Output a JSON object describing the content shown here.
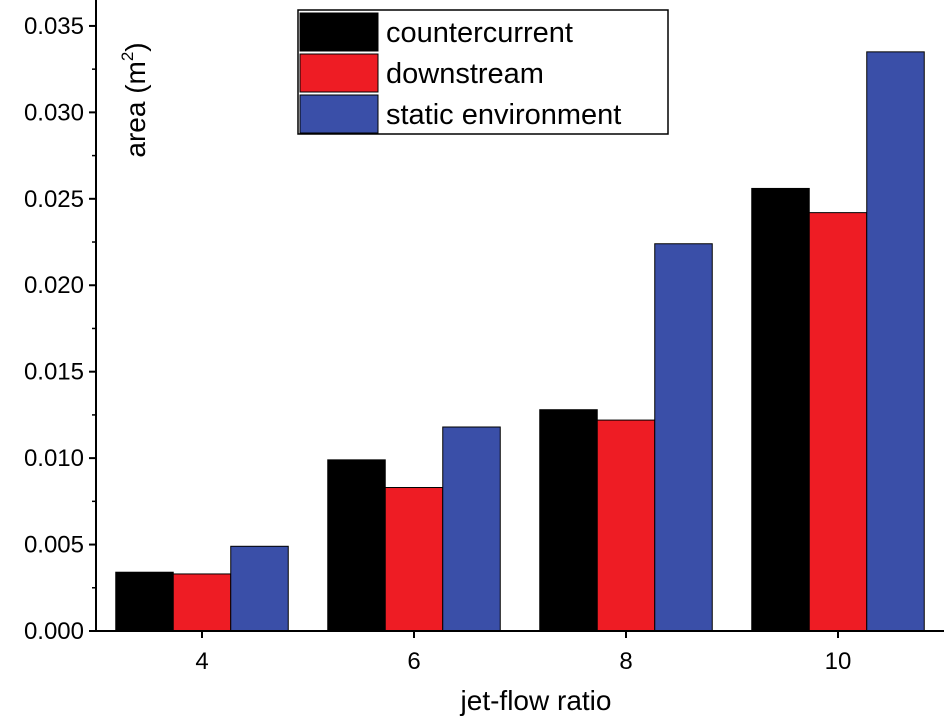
{
  "chart_data": {
    "type": "bar",
    "title": "",
    "xlabel": "jet-flow ratio",
    "ylabel": {
      "base": "area (m",
      "superscript": "2",
      "close": ")"
    },
    "categories": [
      "4",
      "6",
      "8",
      "10"
    ],
    "series": [
      {
        "name": "countercurrent",
        "color": "#000000",
        "values": [
          0.0034,
          0.0099,
          0.0128,
          0.0256
        ]
      },
      {
        "name": "downstream",
        "color": "#ee1c24",
        "values": [
          0.0033,
          0.0083,
          0.0122,
          0.0242
        ]
      },
      {
        "name": "static environment",
        "color": "#3a4fa8",
        "values": [
          0.0049,
          0.0118,
          0.0224,
          0.0335
        ]
      }
    ],
    "ylim": [
      0,
      0.0365
    ],
    "yticks": [
      "0.000",
      "0.005",
      "0.010",
      "0.015",
      "0.020",
      "0.025",
      "0.030",
      "0.035"
    ],
    "legend_position": "top-center",
    "grid": false
  }
}
